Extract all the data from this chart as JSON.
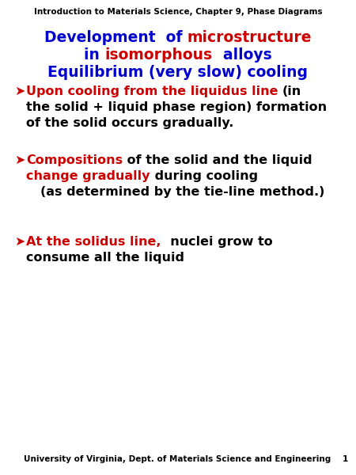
{
  "background_color": "#ffffff",
  "header_text": "Introduction to Materials Science, Chapter 9, Phase Diagrams",
  "header_fontsize": 7.5,
  "footer_text": "University of Virginia, Dept. of Materials Science and Engineering",
  "footer_fontsize": 7.5,
  "page_number": "1",
  "title_fontsize": 13.5,
  "bullet_fontsize": 11.5,
  "blue": "#0000cc",
  "red": "#cc0000",
  "black": "#000000"
}
